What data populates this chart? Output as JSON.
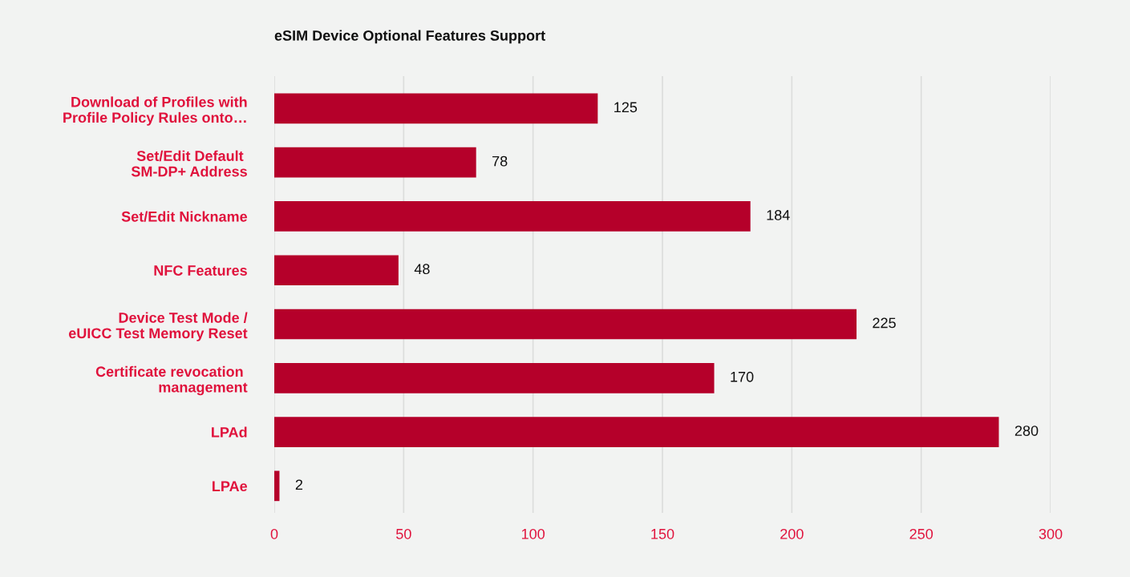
{
  "chart_data": {
    "type": "bar",
    "orientation": "horizontal",
    "title": "eSIM Device Optional Features Support",
    "categories": [
      "Download of Profiles with\nProfile Policy Rules onto…",
      "Set/Edit Default \nSM-DP+ Address",
      "Set/Edit Nickname",
      "NFC Features",
      "Device Test Mode /\neUICC Test Memory Reset",
      "Certificate revocation \nmanagement",
      "LPAd",
      "LPAe"
    ],
    "values": [
      125,
      78,
      184,
      48,
      225,
      170,
      280,
      2
    ],
    "color": "#b5002a",
    "xlim": [
      0,
      300
    ],
    "xticks": [
      0,
      50,
      100,
      150,
      200,
      250,
      300
    ],
    "grid": "x",
    "data_labels": true,
    "legend": false
  }
}
